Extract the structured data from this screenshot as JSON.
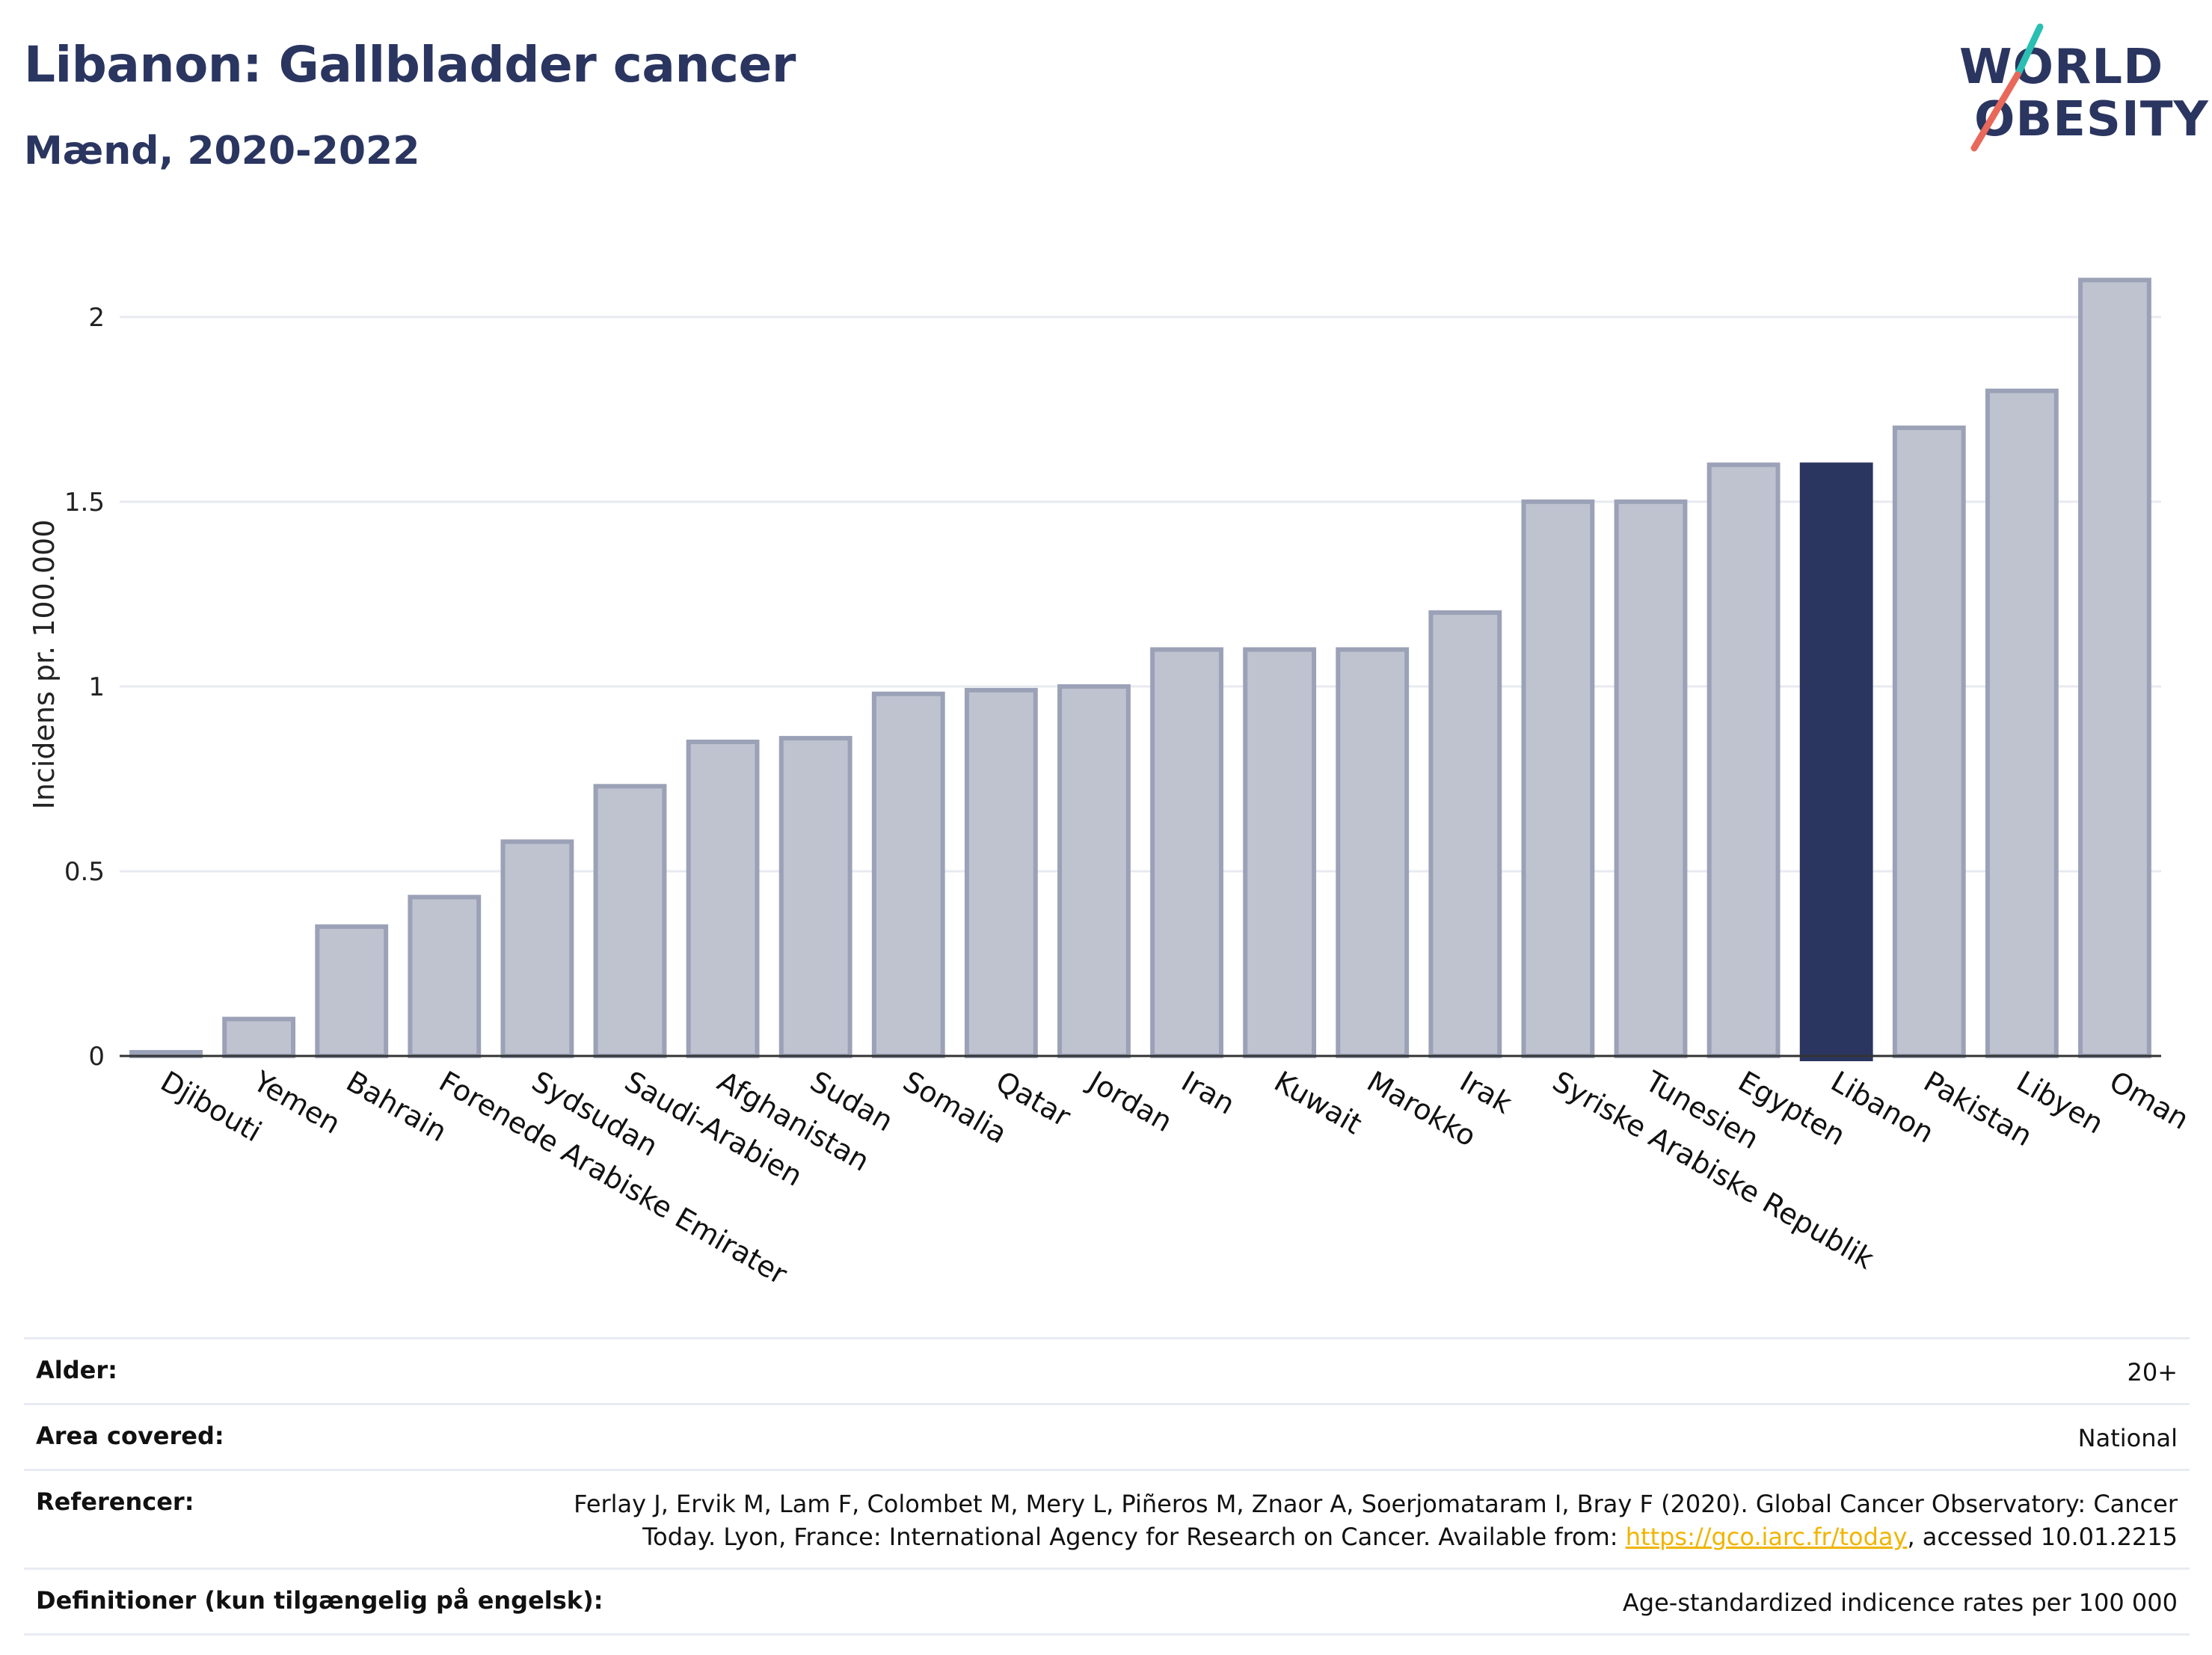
{
  "header": {
    "title": "Libanon: Gallbladder cancer",
    "subtitle": "Mænd, 2020-2022"
  },
  "logo": {
    "line1": "WORLD",
    "line2": "OBESITY",
    "colors": {
      "text": "#2a3560",
      "slash_top": "#2bbfb3",
      "slash_bottom": "#e8685a"
    }
  },
  "colors": {
    "bar": "#bfc3d0",
    "bar_border": "#9ba1b6",
    "highlight": "#2a3560",
    "grid": "#e8eaf0",
    "axis": "#333333"
  },
  "chart_data": {
    "type": "bar",
    "ylabel": "Incidens pr. 100.000",
    "ylim": [
      0,
      2.2
    ],
    "yticks": [
      0,
      0.5,
      1,
      1.5,
      2
    ],
    "ytick_labels": [
      "0",
      "0.5",
      "1",
      "1.5",
      "2"
    ],
    "grid": true,
    "highlight": "Libanon",
    "categories": [
      "Djibouti",
      "Yemen",
      "Bahrain",
      "Forenede Arabiske Emirater",
      "Sydsudan",
      "Saudi-Arabien",
      "Afghanistan",
      "Sudan",
      "Somalia",
      "Qatar",
      "Jordan",
      "Iran",
      "Kuwait",
      "Marokko",
      "Irak",
      "Syriske Arabiske Republik",
      "Tunesien",
      "Egypten",
      "Libanon",
      "Pakistan",
      "Libyen",
      "Oman"
    ],
    "values": [
      0.01,
      0.1,
      0.35,
      0.43,
      0.58,
      0.73,
      0.85,
      0.86,
      0.98,
      0.99,
      1.0,
      1.1,
      1.1,
      1.1,
      1.2,
      1.5,
      1.5,
      1.6,
      1.6,
      1.7,
      1.8,
      2.1
    ]
  },
  "info": {
    "age_label": "Alder:",
    "age_value": "20+",
    "area_label": "Area covered:",
    "area_value": "National",
    "ref_label": "Referencer:",
    "ref_line1": "Ferlay J, Ervik M, Lam F, Colombet M, Mery L, Piñeros M, Znaor A, Soerjomataram I, Bray F (2020). Global Cancer Observatory: Cancer",
    "ref_line2_prefix": "Today. Lyon, France: International Agency for Research on Cancer. Available from: ",
    "ref_link": "https://gco.iarc.fr/today",
    "ref_line2_suffix": ", accessed 10.01.2215",
    "def_label": "Definitioner (kun tilgængelig på engelsk):",
    "def_value": "Age-standardized indicence rates per 100 000"
  }
}
